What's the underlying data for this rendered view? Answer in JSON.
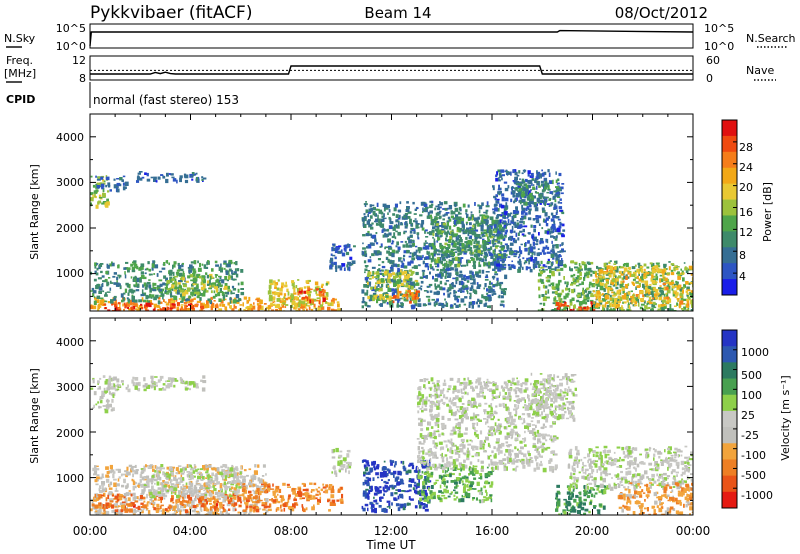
{
  "header": {
    "station": "Pykkvibaer (fitACF)",
    "beam": "Beam 14",
    "date": "08/Oct/2012"
  },
  "noise_panel": {
    "left_label": "N.Sky",
    "right_label": "N.Search",
    "left_ticks": [
      "10^5",
      "10^0"
    ],
    "right_ticks": [
      "10^5",
      "10^0"
    ],
    "legend_style": "dotted"
  },
  "freq_panel": {
    "left_label_top": "Freq.",
    "left_label_unit": "[MHz]",
    "right_label": "Nave",
    "left_ticks": [
      "12",
      "8"
    ],
    "right_ticks": [
      "60",
      "0"
    ],
    "legend_style": "dotted"
  },
  "cpid": {
    "label": "CPID",
    "text": "normal (fast stereo) 153"
  },
  "power_panel": {
    "ylabel": "Slant Range [km]",
    "yticks": [
      "4000",
      "3000",
      "2000",
      "1000"
    ],
    "colorbar_label": "Power [dB]",
    "colorbar_ticks": [
      "28",
      "24",
      "20",
      "16",
      "12",
      "8",
      "4"
    ],
    "colorbar_colors": [
      "#e01010",
      "#f04a10",
      "#f57d1a",
      "#f2a817",
      "#e8c833",
      "#9cc23c",
      "#4fa54a",
      "#3e8a6a",
      "#356e94",
      "#2d55c3",
      "#1a1ee8"
    ]
  },
  "velocity_panel": {
    "ylabel": "Slant Range [km]",
    "yticks": [
      "4000",
      "3000",
      "2000",
      "1000"
    ],
    "colorbar_label": "Velocity [m s⁻¹]",
    "colorbar_ticks": [
      "1000",
      "500",
      "100",
      "25",
      "-25",
      "-100",
      "-500",
      "-1000"
    ],
    "colorbar_colors": [
      "#2534c4",
      "#2d58b0",
      "#2c7a60",
      "#48a050",
      "#8ed04a",
      "#c8c8c4",
      "#c0c0bc",
      "#f2a43c",
      "#ee7f24",
      "#ea5418",
      "#e51a12"
    ]
  },
  "xaxis": {
    "label": "Time UT",
    "ticks": [
      "00:00",
      "04:00",
      "08:00",
      "12:00",
      "16:00",
      "20:00",
      "00:00"
    ]
  },
  "chart_data": [
    {
      "type": "line",
      "name": "noise",
      "x_hours": [
        0,
        0.05,
        0.2,
        18.6,
        18.7,
        24
      ],
      "values_log10": [
        0,
        5,
        5,
        5,
        5.5,
        5
      ],
      "ylim": [
        0,
        5
      ],
      "ylabel": "N.Sky",
      "y2label": "N.Search"
    },
    {
      "type": "line",
      "name": "frequency",
      "x_hours": [
        0,
        2.4,
        2.6,
        2.8,
        3.0,
        3.2,
        3.4,
        7.9,
        8.0,
        17.9,
        18.0,
        24
      ],
      "values_mhz": [
        10,
        10,
        10.4,
        10.1,
        10.5,
        10.1,
        10,
        10,
        12.2,
        12.2,
        10,
        10
      ],
      "dotted_level_mhz": 11,
      "ylim": [
        8,
        12
      ],
      "ylabel": "Freq. [MHz]",
      "y2label": "Nave",
      "y2lim": [
        0,
        60
      ]
    },
    {
      "type": "heatmap",
      "name": "power",
      "xlim_hours": [
        0,
        24
      ],
      "ylim_km": [
        180,
        4500
      ],
      "ylabel": "Slant Range [km]",
      "colorbar": "Power [dB]",
      "clim": [
        3,
        30
      ],
      "patches": [
        {
          "t": [
            0.0,
            0.7
          ],
          "r": [
            2500,
            3250
          ],
          "v": 16
        },
        {
          "t": [
            0.2,
            1.4
          ],
          "r": [
            2850,
            3150
          ],
          "v": 8
        },
        {
          "t": [
            1.8,
            4.6
          ],
          "r": [
            3050,
            3250
          ],
          "v": 8
        },
        {
          "t": [
            0.0,
            10.0
          ],
          "r": [
            180,
            500
          ],
          "v": 22
        },
        {
          "t": [
            0.5,
            4.5
          ],
          "r": [
            180,
            380
          ],
          "v": 27
        },
        {
          "t": [
            0.0,
            6.0
          ],
          "r": [
            400,
            1300
          ],
          "v": 12
        },
        {
          "t": [
            3.0,
            5.5
          ],
          "r": [
            600,
            1000
          ],
          "v": 16
        },
        {
          "t": [
            7.0,
            9.5
          ],
          "r": [
            300,
            900
          ],
          "v": 18
        },
        {
          "t": [
            8.2,
            9.3
          ],
          "r": [
            400,
            700
          ],
          "v": 26
        },
        {
          "t": [
            9.5,
            10.5
          ],
          "r": [
            1100,
            1700
          ],
          "v": 8
        },
        {
          "t": [
            10.8,
            16.5
          ],
          "r": [
            300,
            2600
          ],
          "v": 10
        },
        {
          "t": [
            11.0,
            13.0
          ],
          "r": [
            400,
            1100
          ],
          "v": 17
        },
        {
          "t": [
            12.0,
            13.0
          ],
          "r": [
            400,
            700
          ],
          "v": 24
        },
        {
          "t": [
            13.5,
            16.5
          ],
          "r": [
            1200,
            2300
          ],
          "v": 13
        },
        {
          "t": [
            16.0,
            18.8
          ],
          "r": [
            1100,
            3300
          ],
          "v": 8
        },
        {
          "t": [
            16.8,
            18.6
          ],
          "r": [
            2500,
            3100
          ],
          "v": 11
        },
        {
          "t": [
            17.8,
            24.0
          ],
          "r": [
            180,
            1300
          ],
          "v": 14
        },
        {
          "t": [
            18.5,
            20.0
          ],
          "r": [
            180,
            400
          ],
          "v": 26
        },
        {
          "t": [
            20.0,
            24.0
          ],
          "r": [
            300,
            1200
          ],
          "v": 20
        }
      ]
    },
    {
      "type": "heatmap",
      "name": "velocity",
      "xlim_hours": [
        0,
        24
      ],
      "ylim_km": [
        180,
        4500
      ],
      "ylabel": "Slant Range [km]",
      "colorbar": "Velocity [m s-1]",
      "clim": [
        -1000,
        1000
      ],
      "patches": [
        {
          "t": [
            0.0,
            0.9
          ],
          "r": [
            2500,
            3250
          ],
          "v": 0
        },
        {
          "t": [
            0.6,
            4.5
          ],
          "r": [
            2950,
            3250
          ],
          "v": 0
        },
        {
          "t": [
            0.0,
            7.0
          ],
          "r": [
            180,
            1300
          ],
          "v": -200
        },
        {
          "t": [
            0.0,
            6.0
          ],
          "r": [
            300,
            650
          ],
          "v": -600
        },
        {
          "t": [
            2.0,
            6.0
          ],
          "r": [
            600,
            1300
          ],
          "v": 0
        },
        {
          "t": [
            6.0,
            10.0
          ],
          "r": [
            300,
            900
          ],
          "v": -500
        },
        {
          "t": [
            9.6,
            10.3
          ],
          "r": [
            1100,
            1700
          ],
          "v": 0
        },
        {
          "t": [
            10.8,
            13.5
          ],
          "r": [
            300,
            1400
          ],
          "v": 800
        },
        {
          "t": [
            13.0,
            16.0
          ],
          "r": [
            500,
            1300
          ],
          "v": 300
        },
        {
          "t": [
            13.0,
            18.5
          ],
          "r": [
            1200,
            3200
          ],
          "v": 0
        },
        {
          "t": [
            17.5,
            19.3
          ],
          "r": [
            2300,
            3300
          ],
          "v": 0
        },
        {
          "t": [
            18.5,
            20.5
          ],
          "r": [
            180,
            900
          ],
          "v": 400
        },
        {
          "t": [
            19.0,
            24.0
          ],
          "r": [
            800,
            1700
          ],
          "v": 0
        },
        {
          "t": [
            21.0,
            24.0
          ],
          "r": [
            180,
            900
          ],
          "v": -400
        }
      ]
    }
  ]
}
